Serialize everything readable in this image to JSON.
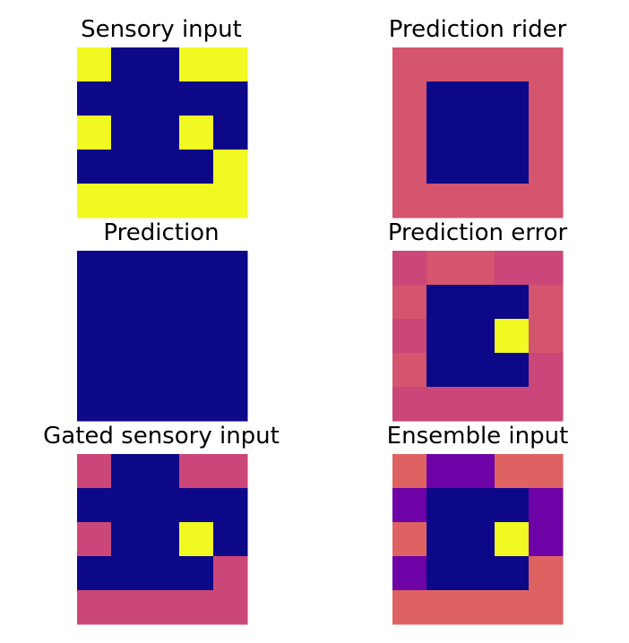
{
  "chart_data": [
    {
      "type": "heatmap",
      "title": "Sensory input",
      "colormap": "plasma",
      "grid": false,
      "axes": "off",
      "values": [
        [
          1,
          0,
          0,
          1,
          1
        ],
        [
          0,
          0,
          0,
          0,
          0
        ],
        [
          1,
          0,
          0,
          1,
          0
        ],
        [
          0,
          0,
          0,
          0,
          1
        ],
        [
          1,
          1,
          1,
          1,
          1
        ]
      ]
    },
    {
      "type": "heatmap",
      "title": "Prediction rider",
      "colormap": "plasma",
      "grid": false,
      "axes": "off",
      "values": [
        [
          0.55,
          0.55,
          0.55,
          0.55,
          0.55
        ],
        [
          0.55,
          0,
          0,
          0,
          0.55
        ],
        [
          0.55,
          0,
          0,
          0,
          0.55
        ],
        [
          0.55,
          0,
          0,
          0,
          0.55
        ],
        [
          0.55,
          0.55,
          0.55,
          0.55,
          0.55
        ]
      ]
    },
    {
      "type": "heatmap",
      "title": "Prediction",
      "colormap": "plasma",
      "grid": false,
      "axes": "off",
      "values": [
        [
          0,
          0,
          0,
          0,
          0
        ],
        [
          0,
          0,
          0,
          0,
          0
        ],
        [
          0,
          0,
          0,
          0,
          0
        ],
        [
          0,
          0,
          0,
          0,
          0
        ],
        [
          0,
          0,
          0,
          0,
          0
        ]
      ]
    },
    {
      "type": "heatmap",
      "title": "Prediction error",
      "colormap": "plasma",
      "grid": false,
      "axes": "off",
      "values": [
        [
          0.5,
          0.55,
          0.55,
          0.5,
          0.5
        ],
        [
          0.55,
          0,
          0,
          0,
          0.55
        ],
        [
          0.5,
          0,
          0,
          1,
          0.55
        ],
        [
          0.55,
          0,
          0,
          0,
          0.5
        ],
        [
          0.5,
          0.5,
          0.5,
          0.5,
          0.5
        ]
      ]
    },
    {
      "type": "heatmap",
      "title": "Gated sensory input",
      "colormap": "plasma",
      "grid": false,
      "axes": "off",
      "values": [
        [
          0.5,
          0,
          0,
          0.5,
          0.5
        ],
        [
          0,
          0,
          0,
          0,
          0
        ],
        [
          0.5,
          0,
          0,
          1,
          0
        ],
        [
          0,
          0,
          0,
          0,
          0.5
        ],
        [
          0.5,
          0.5,
          0.5,
          0.5,
          0.5
        ]
      ]
    },
    {
      "type": "heatmap",
      "title": "Ensemble input",
      "colormap": "plasma",
      "grid": false,
      "axes": "off",
      "values": [
        [
          0.6,
          0.2,
          0.2,
          0.6,
          0.6
        ],
        [
          0.2,
          0,
          0,
          0,
          0.2
        ],
        [
          0.6,
          0,
          0,
          1,
          0.2
        ],
        [
          0.2,
          0,
          0,
          0,
          0.6
        ],
        [
          0.6,
          0.6,
          0.6,
          0.6,
          0.6
        ]
      ]
    }
  ]
}
